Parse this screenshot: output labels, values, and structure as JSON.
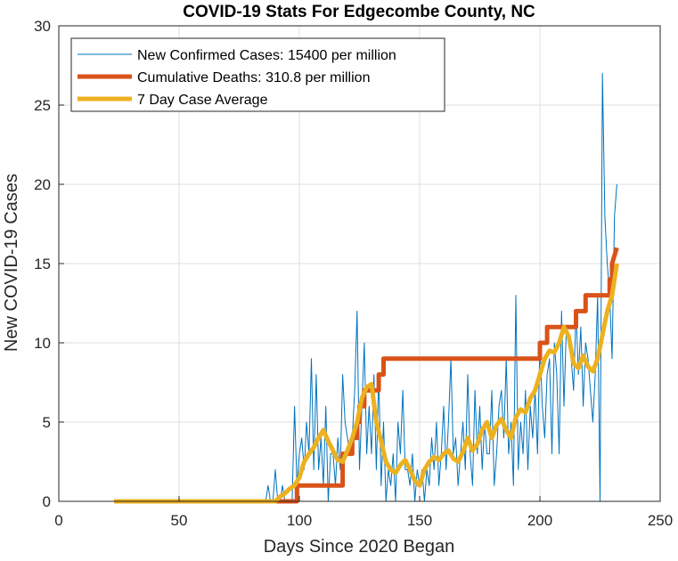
{
  "chart_data": {
    "type": "line",
    "title": "COVID-19 Stats For Edgecombe County, NC",
    "xlabel": "Days Since 2020 Began",
    "ylabel": "New COVID-19 Cases",
    "xlim": [
      0,
      250
    ],
    "ylim": [
      0,
      30
    ],
    "xticks": [
      0,
      50,
      100,
      150,
      200,
      250
    ],
    "yticks": [
      0,
      5,
      10,
      15,
      20,
      25,
      30
    ],
    "grid": true,
    "legend_position": "top-left",
    "series": [
      {
        "name": "New Confirmed Cases: 15400 per million",
        "color": "#0072BD",
        "width": 1,
        "x": [
          23,
          86,
          87,
          88,
          89,
          90,
          91,
          92,
          93,
          94,
          95,
          96,
          97,
          98,
          99,
          100,
          101,
          102,
          103,
          104,
          105,
          106,
          107,
          108,
          109,
          110,
          111,
          112,
          113,
          114,
          115,
          116,
          117,
          118,
          119,
          120,
          121,
          122,
          123,
          124,
          125,
          126,
          127,
          128,
          129,
          130,
          131,
          132,
          133,
          134,
          135,
          136,
          137,
          138,
          139,
          140,
          141,
          142,
          143,
          144,
          145,
          146,
          147,
          148,
          149,
          150,
          151,
          152,
          153,
          154,
          155,
          156,
          157,
          158,
          159,
          160,
          161,
          162,
          163,
          164,
          165,
          166,
          167,
          168,
          169,
          170,
          171,
          172,
          173,
          174,
          175,
          176,
          177,
          178,
          179,
          180,
          181,
          182,
          183,
          184,
          185,
          186,
          187,
          188,
          189,
          190,
          191,
          192,
          193,
          194,
          195,
          196,
          197,
          198,
          199,
          200,
          201,
          202,
          203,
          204,
          205,
          206,
          207,
          208,
          209,
          210,
          211,
          212,
          213,
          214,
          215,
          216,
          217,
          218,
          219,
          220,
          221,
          222,
          223,
          224,
          225,
          226,
          227,
          228,
          229,
          230,
          231,
          232
        ],
        "y": [
          0,
          0,
          1,
          0,
          0,
          2,
          0,
          0,
          1,
          0,
          0,
          0,
          0,
          6,
          1,
          3,
          4,
          2,
          5,
          3,
          9,
          2,
          8,
          2,
          4,
          1,
          6,
          0,
          3,
          3,
          1,
          4,
          2,
          8,
          5,
          4,
          3,
          4,
          7,
          12,
          2,
          6,
          10,
          3,
          6,
          3,
          8,
          2,
          8,
          1,
          5,
          0,
          2,
          1,
          3,
          0,
          5,
          3,
          7,
          2,
          2,
          1,
          3,
          0,
          2,
          1,
          2,
          0,
          2,
          1,
          4,
          2,
          5,
          1,
          3,
          6,
          2,
          5,
          9,
          3,
          4,
          1,
          3,
          5,
          2,
          8,
          3,
          1,
          7,
          3,
          6,
          2,
          5,
          3,
          3,
          7,
          1,
          3,
          6,
          7,
          4,
          9,
          3,
          5,
          1,
          13,
          2,
          5,
          3,
          7,
          2,
          6,
          4,
          7,
          3,
          10,
          6,
          4,
          8,
          9,
          3,
          10,
          8,
          3,
          12,
          6,
          11,
          10,
          9,
          7,
          12,
          8,
          11,
          6,
          10,
          9,
          7,
          5,
          8,
          13,
          0,
          27,
          18,
          15,
          13,
          9,
          18,
          20
        ]
      },
      {
        "name": "Cumulative Deaths: 310.8 per million",
        "color": "#D95319",
        "width": 5,
        "x": [
          23,
          99,
          99,
          118,
          118,
          122,
          122,
          124,
          124,
          125,
          125,
          127,
          127,
          133,
          133,
          135,
          135,
          141,
          141,
          200,
          200,
          203,
          203,
          208,
          208,
          215,
          215,
          219,
          219,
          222,
          222,
          229,
          229,
          230,
          230,
          232
        ],
        "y": [
          0,
          0,
          1,
          1,
          3,
          3,
          4,
          4,
          5,
          5,
          6,
          6,
          7,
          7,
          8,
          8,
          9,
          9,
          9,
          9,
          10,
          10,
          11,
          11,
          11,
          11,
          12,
          12,
          13,
          13,
          13,
          13,
          14,
          14,
          15,
          16
        ]
      },
      {
        "name": "7 Day Case Average",
        "color": "#EDB120",
        "width": 5,
        "x": [
          23,
          90,
          92,
          94,
          96,
          98,
          100,
          102,
          104,
          106,
          108,
          110,
          112,
          114,
          116,
          118,
          120,
          122,
          124,
          126,
          128,
          130,
          132,
          134,
          136,
          138,
          140,
          142,
          144,
          146,
          148,
          150,
          152,
          154,
          156,
          158,
          160,
          162,
          164,
          166,
          168,
          170,
          172,
          174,
          176,
          178,
          180,
          182,
          184,
          186,
          188,
          190,
          192,
          194,
          196,
          198,
          200,
          202,
          204,
          206,
          208,
          210,
          212,
          214,
          216,
          218,
          220,
          222,
          224,
          226,
          228,
          230,
          232
        ],
        "y": [
          0,
          0,
          0.3,
          0.5,
          0.8,
          1.0,
          1.5,
          2.5,
          3.0,
          3.4,
          4.0,
          4.5,
          3.8,
          3.2,
          2.6,
          2.5,
          3.2,
          4.0,
          5.0,
          6.5,
          7.2,
          7.4,
          5.0,
          3.8,
          2.5,
          2.0,
          1.8,
          2.3,
          2.6,
          2.0,
          1.3,
          1.0,
          2.0,
          2.5,
          2.8,
          2.6,
          3.0,
          3.2,
          2.7,
          2.5,
          3.1,
          4.0,
          3.2,
          3.6,
          4.5,
          5.0,
          4.0,
          4.8,
          5.2,
          4.5,
          4.0,
          5.3,
          5.8,
          5.6,
          6.5,
          7.0,
          8.0,
          9.0,
          9.5,
          9.4,
          10.0,
          11.0,
          10.4,
          8.7,
          8.4,
          9.2,
          8.5,
          8.2,
          9.0,
          10.5,
          12.0,
          13.0,
          15.0
        ]
      }
    ]
  }
}
